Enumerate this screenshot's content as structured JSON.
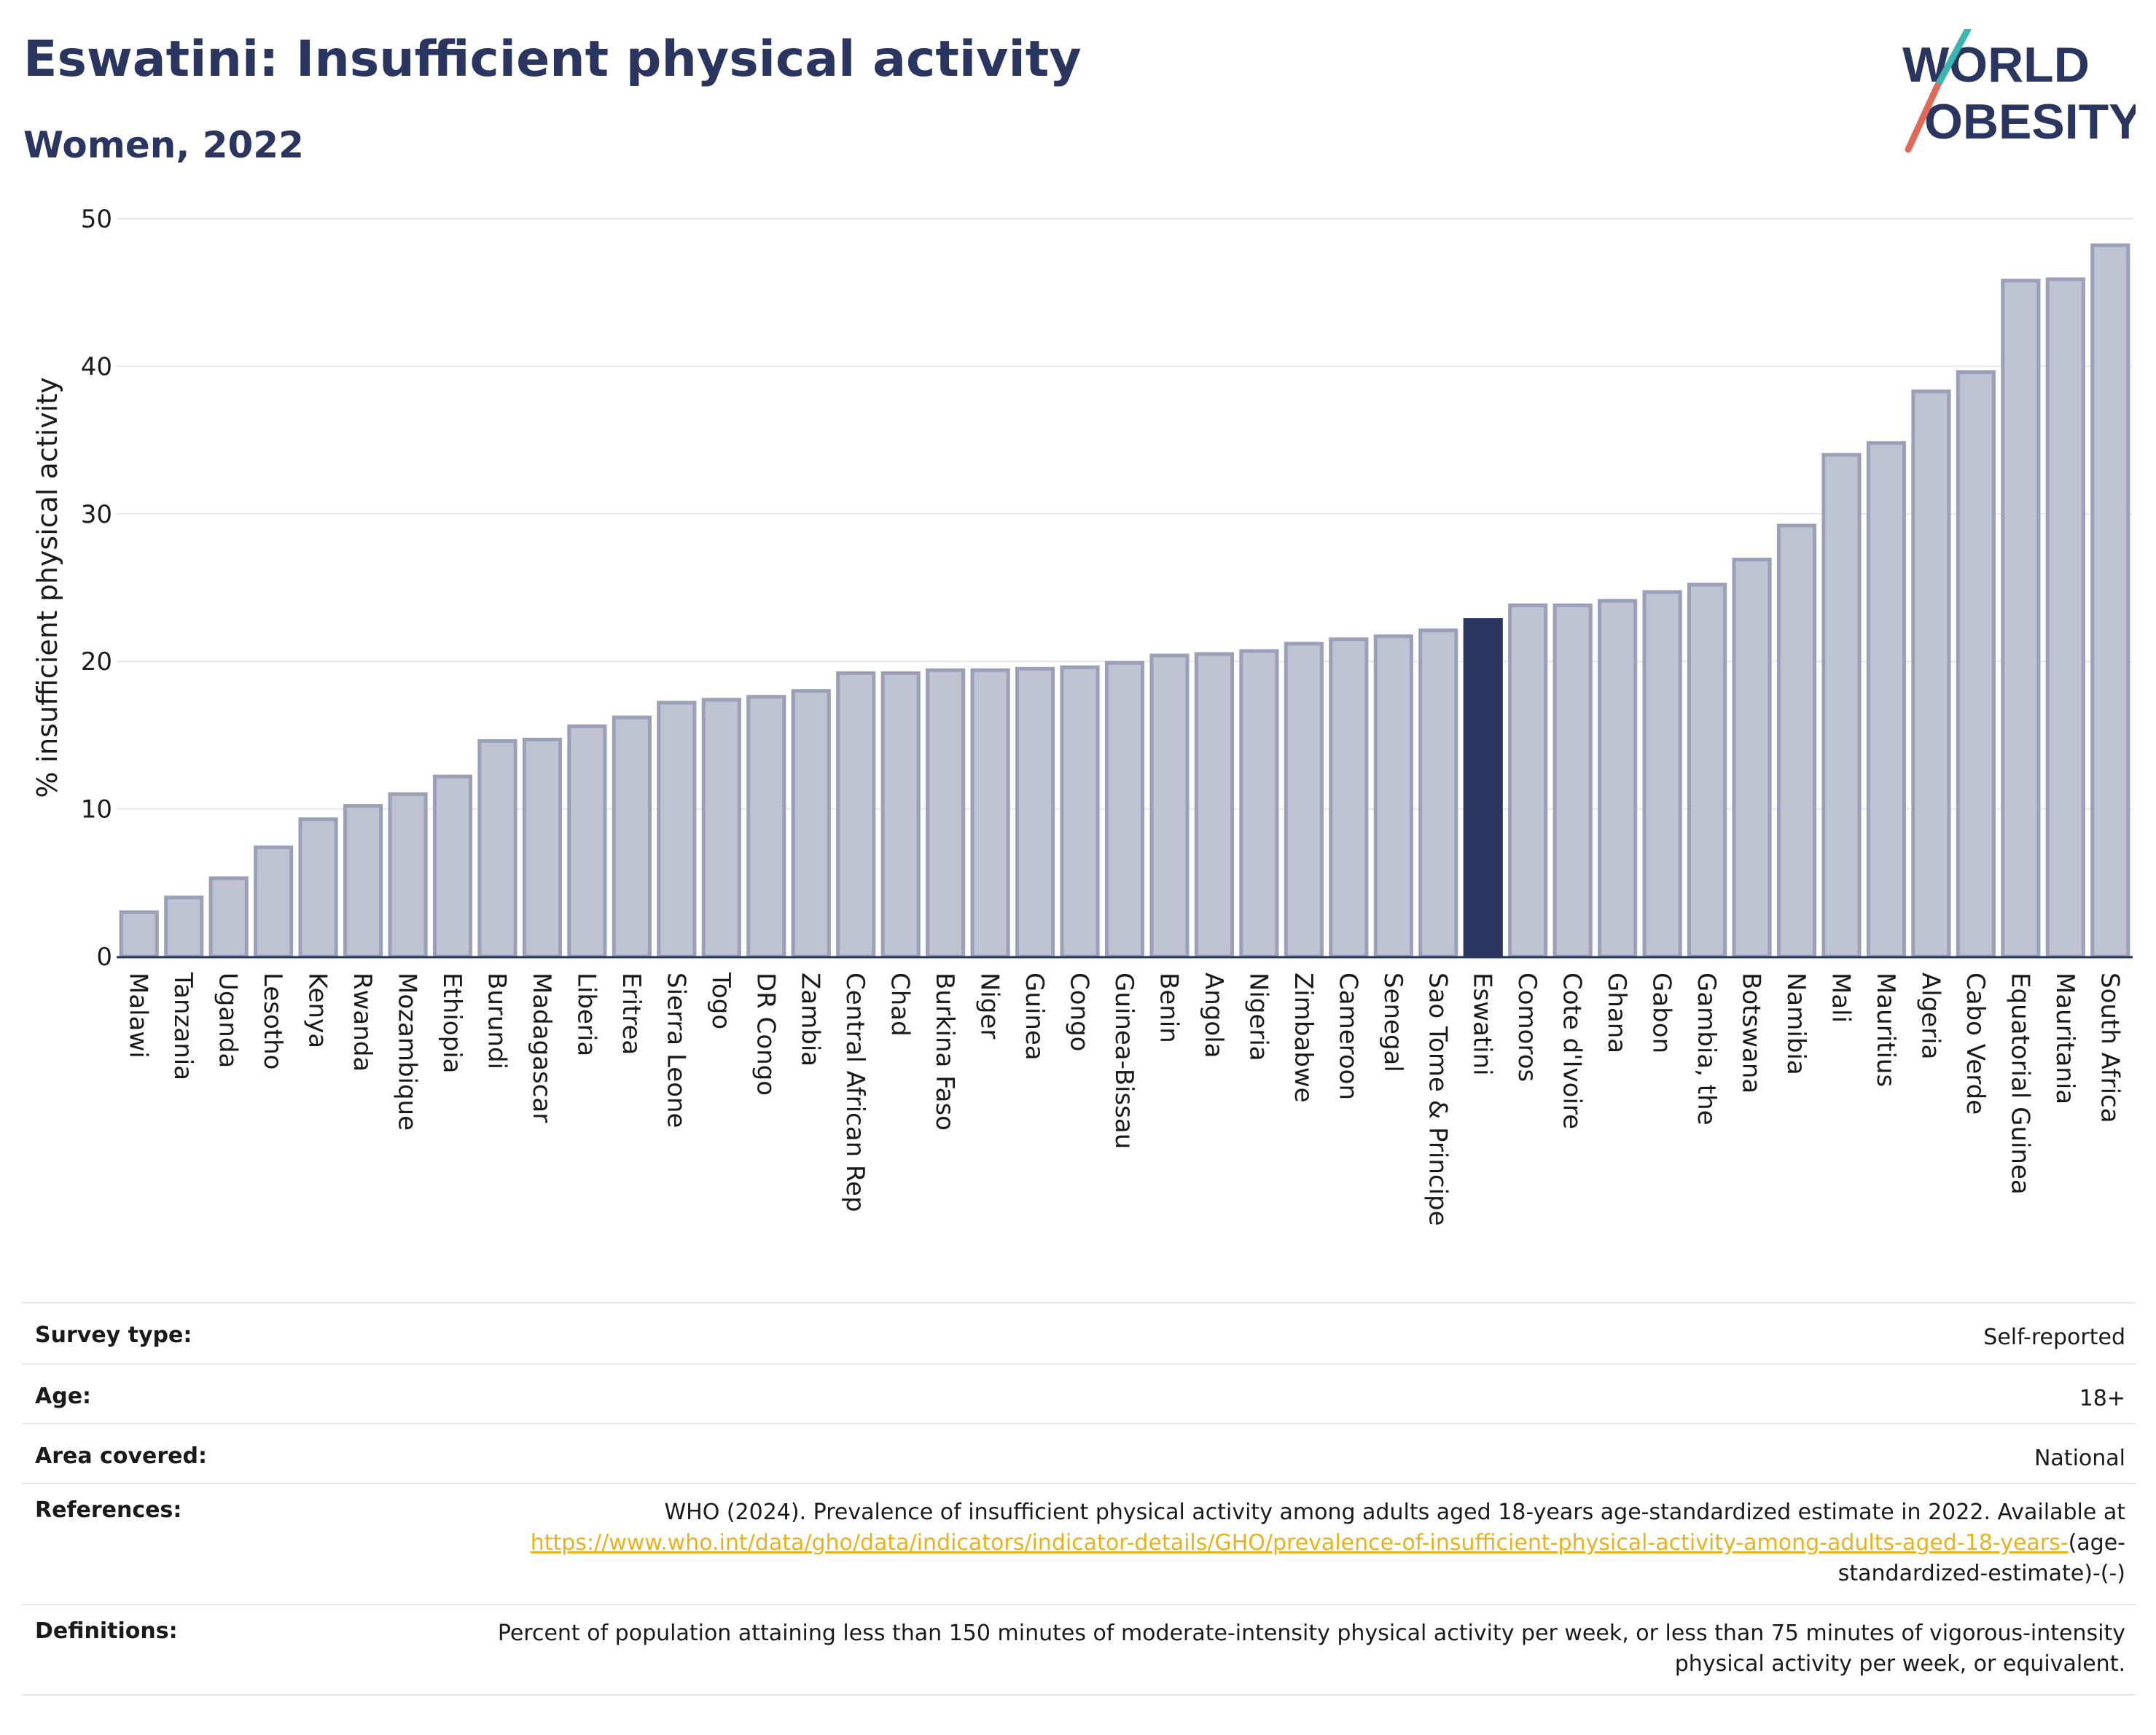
{
  "title": "Eswatini: Insufficient physical activity",
  "subtitle": "Women, 2022",
  "logo": {
    "line1": "WORLD",
    "line2": "OBESITY"
  },
  "colors": {
    "highlight": "#2a3560",
    "bar": "#bec2d1",
    "bar_stroke": "#9aa0b8",
    "accent_teal": "#3ab5b0",
    "accent_red": "#e06a5a"
  },
  "chart_data": {
    "type": "bar",
    "ylabel": "% insufficient physical activity",
    "ylim": [
      0,
      50
    ],
    "yticks": [
      0,
      10,
      20,
      30,
      40,
      50
    ],
    "grid": true,
    "highlight": "Eswatini",
    "categories": [
      "Malawi",
      "Tanzania",
      "Uganda",
      "Lesotho",
      "Kenya",
      "Rwanda",
      "Mozambique",
      "Ethiopia",
      "Burundi",
      "Madagascar",
      "Liberia",
      "Eritrea",
      "Sierra Leone",
      "Togo",
      "DR Congo",
      "Zambia",
      "Central African Rep",
      "Chad",
      "Burkina Faso",
      "Niger",
      "Guinea",
      "Congo",
      "Guinea-Bissau",
      "Benin",
      "Angola",
      "Nigeria",
      "Zimbabwe",
      "Cameroon",
      "Senegal",
      "Sao Tome & Principe",
      "Eswatini",
      "Comoros",
      "Cote d'Ivoire",
      "Ghana",
      "Gabon",
      "Gambia, the",
      "Botswana",
      "Namibia",
      "Mali",
      "Mauritius",
      "Algeria",
      "Cabo Verde",
      "Equatorial Guinea",
      "Mauritania",
      "South Africa"
    ],
    "values": [
      3.0,
      4.0,
      5.3,
      7.4,
      9.3,
      10.2,
      11.0,
      12.2,
      14.6,
      14.7,
      15.6,
      16.2,
      17.2,
      17.4,
      17.6,
      18.0,
      19.2,
      19.2,
      19.4,
      19.4,
      19.5,
      19.6,
      19.9,
      20.4,
      20.5,
      20.7,
      21.2,
      21.5,
      21.7,
      22.1,
      22.8,
      23.8,
      23.8,
      24.1,
      24.7,
      25.2,
      26.9,
      29.2,
      34.0,
      34.8,
      38.3,
      39.6,
      45.8,
      45.9,
      48.2
    ]
  },
  "info": {
    "survey_key": "Survey type:",
    "survey_val": "Self-reported",
    "age_key": "Age:",
    "age_val": "18+",
    "area_key": "Area covered:",
    "area_val": "National",
    "ref_key": "References:",
    "ref_text": "WHO (2024). Prevalence of insufficient physical activity among adults aged 18-years age-standardized estimate in 2022. Available at",
    "ref_link": "https://www.who.int/data/gho/data/indicators/indicator-details/GHO/prevalence-of-insufficient-physical-activity-among-adults-aged-18-years-",
    "ref_suffix": "(age-standardized-estimate)-(-)",
    "def_key": "Definitions:",
    "def_val": "Percent of population attaining less than 150 minutes of moderate-intensity physical activity per week, or less than 75 minutes of vigorous-intensity physical activity per week, or equivalent."
  }
}
